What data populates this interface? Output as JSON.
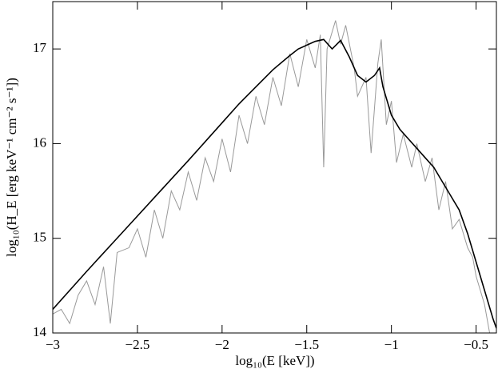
{
  "chart_data": {
    "type": "line",
    "x_label": "log₁₀(E [keV])",
    "y_label": "log₁₀(H_E [erg keV⁻¹ cm⁻² s⁻¹])",
    "xlim": [
      -3,
      -0.38
    ],
    "ylim": [
      14,
      17.5
    ],
    "xticks": [
      {
        "value": -3,
        "label": "−3"
      },
      {
        "value": -2.5,
        "label": "−2.5"
      },
      {
        "value": -2,
        "label": "−2"
      },
      {
        "value": -1.5,
        "label": "−1.5"
      },
      {
        "value": -1,
        "label": "−1"
      },
      {
        "value": -0.5,
        "label": "−0.5"
      }
    ],
    "yticks": [
      14,
      15,
      16,
      17
    ],
    "series": [
      {
        "color": "#999999",
        "x": [
          -3.0,
          -2.95,
          -2.9,
          -2.85,
          -2.8,
          -2.75,
          -2.7,
          -2.66,
          -2.62,
          -2.55,
          -2.5,
          -2.45,
          -2.4,
          -2.35,
          -2.3,
          -2.25,
          -2.2,
          -2.15,
          -2.1,
          -2.05,
          -2.0,
          -1.95,
          -1.9,
          -1.85,
          -1.8,
          -1.75,
          -1.7,
          -1.65,
          -1.6,
          -1.55,
          -1.5,
          -1.45,
          -1.42,
          -1.4,
          -1.38,
          -1.33,
          -1.3,
          -1.27,
          -1.22,
          -1.2,
          -1.15,
          -1.12,
          -1.08,
          -1.06,
          -1.03,
          -1.0,
          -0.97,
          -0.93,
          -0.88,
          -0.85,
          -0.8,
          -0.76,
          -0.72,
          -0.68,
          -0.64,
          -0.6,
          -0.55,
          -0.52,
          -0.5,
          -0.45,
          -0.42
        ],
        "values": [
          14.2,
          14.25,
          14.1,
          14.4,
          14.55,
          14.3,
          14.7,
          14.1,
          14.85,
          14.9,
          15.1,
          14.8,
          15.3,
          15.0,
          15.5,
          15.3,
          15.7,
          15.4,
          15.85,
          15.6,
          16.05,
          15.7,
          16.3,
          16.0,
          16.5,
          16.2,
          16.7,
          16.4,
          16.95,
          16.6,
          17.1,
          16.8,
          17.15,
          15.75,
          17.0,
          17.3,
          17.05,
          17.25,
          16.8,
          16.5,
          16.7,
          15.9,
          16.85,
          17.1,
          16.2,
          16.45,
          15.8,
          16.1,
          15.75,
          16.0,
          15.6,
          15.85,
          15.3,
          15.6,
          15.1,
          15.2,
          14.9,
          14.8,
          14.6,
          14.3,
          14.0
        ]
      },
      {
        "color": "#000000",
        "x": [
          -3.0,
          -2.8,
          -2.6,
          -2.4,
          -2.2,
          -2.1,
          -2.0,
          -1.9,
          -1.8,
          -1.7,
          -1.6,
          -1.55,
          -1.5,
          -1.45,
          -1.4,
          -1.35,
          -1.3,
          -1.25,
          -1.2,
          -1.15,
          -1.1,
          -1.07,
          -1.05,
          -1.0,
          -0.95,
          -0.9,
          -0.85,
          -0.8,
          -0.75,
          -0.7,
          -0.65,
          -0.6,
          -0.55,
          -0.5,
          -0.45,
          -0.4,
          -0.38
        ],
        "values": [
          14.25,
          14.65,
          15.04,
          15.43,
          15.82,
          16.02,
          16.22,
          16.42,
          16.6,
          16.78,
          16.93,
          17.0,
          17.04,
          17.08,
          17.1,
          17.0,
          17.09,
          16.92,
          16.72,
          16.65,
          16.72,
          16.8,
          16.6,
          16.3,
          16.15,
          16.05,
          15.95,
          15.85,
          15.75,
          15.6,
          15.45,
          15.3,
          15.05,
          14.75,
          14.45,
          14.15,
          14.05
        ]
      }
    ]
  }
}
